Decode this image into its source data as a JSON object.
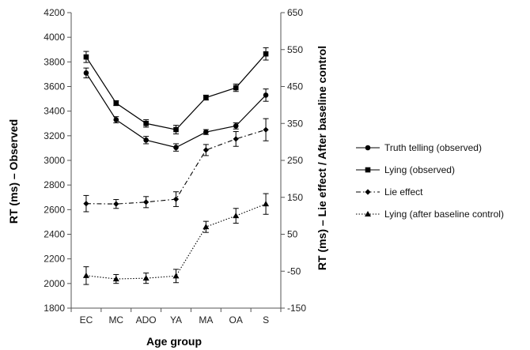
{
  "chart_data": {
    "type": "line",
    "title": "",
    "xlabel": "Age group",
    "ylabel_left": "RT (ms) – Observed",
    "ylabel_right": "RT (ms) – Lie effect / After baseline control",
    "categories": [
      "EC",
      "MC",
      "ADO",
      "YA",
      "MA",
      "OA",
      "S"
    ],
    "y_left": {
      "lim": [
        1800,
        4200
      ],
      "ticks": [
        1800,
        2000,
        2200,
        2400,
        2600,
        2800,
        3000,
        3200,
        3400,
        3600,
        3800,
        4000,
        4200
      ]
    },
    "y_right": {
      "lim": [
        -150,
        650
      ],
      "ticks": [
        -150,
        -50,
        50,
        150,
        250,
        350,
        450,
        550,
        650
      ]
    },
    "grid": false,
    "legend_position": "right",
    "series": [
      {
        "name": "Truth telling (observed)",
        "axis": "left",
        "marker": "circle",
        "line": "solid",
        "values": [
          3710,
          3330,
          3165,
          3105,
          3230,
          3280,
          3530
        ],
        "errors": [
          40,
          25,
          30,
          30,
          20,
          25,
          50
        ]
      },
      {
        "name": "Lying (observed)",
        "axis": "left",
        "marker": "square",
        "line": "solid",
        "values": [
          3840,
          3465,
          3300,
          3250,
          3510,
          3590,
          3865
        ],
        "errors": [
          45,
          20,
          30,
          35,
          20,
          30,
          50
        ]
      },
      {
        "name": "Lie effect",
        "axis": "right",
        "marker": "diamond",
        "line": "dashdot",
        "values": [
          133,
          132,
          137,
          145,
          278,
          308,
          333
        ],
        "errors": [
          22,
          12,
          15,
          20,
          15,
          20,
          30
        ]
      },
      {
        "name": "Lying (after baseline control)",
        "axis": "right",
        "marker": "triangle",
        "line": "dotted",
        "values": [
          -62,
          -71,
          -69,
          -63,
          70,
          100,
          132
        ],
        "errors": [
          24,
          12,
          14,
          18,
          15,
          20,
          28
        ]
      }
    ]
  }
}
